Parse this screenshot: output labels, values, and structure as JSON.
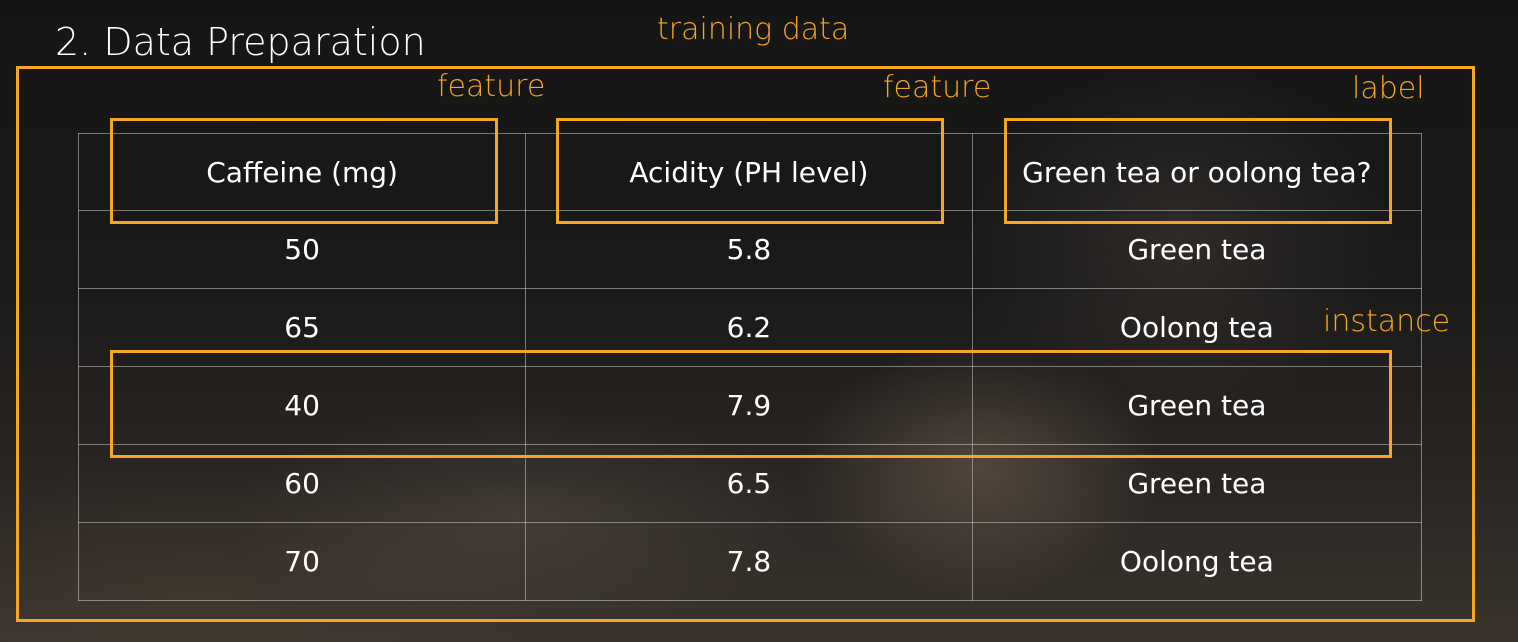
{
  "slide": {
    "title": "2. Data Preparation"
  },
  "annotations": {
    "training_data": "training data",
    "feature_1": "feature",
    "feature_2": "feature",
    "label": "label",
    "instance": "instance",
    "accent_color": "#f5a623"
  },
  "table": {
    "headers": [
      "Caffeine (mg)",
      "Acidity (PH level)",
      "Green tea or oolong tea?"
    ],
    "rows": [
      [
        "50",
        "5.8",
        "Green tea"
      ],
      [
        "65",
        "6.2",
        "Oolong tea"
      ],
      [
        "40",
        "7.9",
        "Green tea"
      ],
      [
        "60",
        "6.5",
        "Green tea"
      ],
      [
        "70",
        "7.8",
        "Oolong tea"
      ]
    ]
  }
}
